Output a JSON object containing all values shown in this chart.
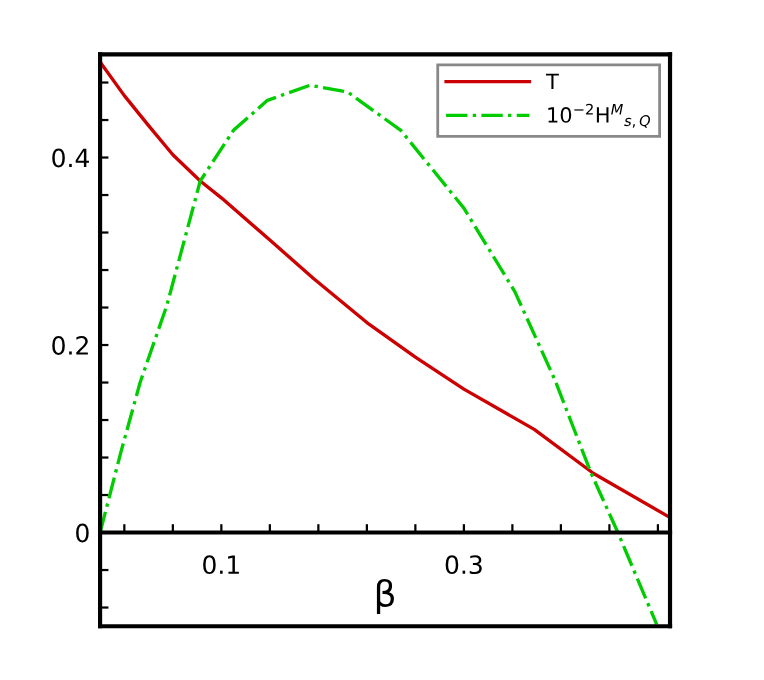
{
  "chart_data": {
    "type": "line",
    "xlabel": "β",
    "legend": "top right",
    "grid": false,
    "marker": "none",
    "xlim": [
      0,
      0.47
    ],
    "ylim": [
      -0.1,
      0.51
    ],
    "xticks": [
      {
        "value": 0.02,
        "label": null
      },
      {
        "value": 0.06,
        "label": null
      },
      0.1,
      {
        "value": 0.14,
        "label": null
      },
      {
        "value": 0.18,
        "label": null
      },
      {
        "value": 0.22,
        "label": null
      },
      {
        "value": 0.26,
        "label": null
      },
      0.3,
      {
        "value": 0.34,
        "label": null
      },
      {
        "value": 0.38,
        "label": null
      },
      {
        "value": 0.42,
        "label": null
      },
      {
        "value": 0.46,
        "label": null
      }
    ],
    "yticks": [
      {
        "value": -0.08,
        "label": null
      },
      {
        "value": -0.04,
        "label": null
      },
      0,
      {
        "value": 0.04,
        "label": null
      },
      {
        "value": 0.08,
        "label": null
      },
      {
        "value": 0.12,
        "label": null
      },
      {
        "value": 0.16,
        "label": null
      },
      0.2,
      {
        "value": 0.24,
        "label": null
      },
      {
        "value": 0.28,
        "label": null
      },
      {
        "value": 0.32,
        "label": null
      },
      {
        "value": 0.36,
        "label": null
      },
      0.4,
      {
        "value": 0.44,
        "label": null
      },
      {
        "value": 0.48,
        "label": null
      }
    ],
    "series": [
      {
        "name": "T",
        "color": "#cc0000",
        "line_style": "solid",
        "x": [
          0,
          0.02,
          0.04,
          0.06,
          0.0826,
          0.1,
          0.14,
          0.176,
          0.22,
          0.26,
          0.3,
          0.358,
          0.407,
          0.47
        ],
        "values": [
          0.502,
          0.466,
          0.434,
          0.403,
          0.375,
          0.357,
          0.312,
          0.271,
          0.224,
          0.187,
          0.153,
          0.11,
          0.063,
          0.016
        ]
      },
      {
        "name": "10$^{−2}$H$^{M}$$_{s,Q}$",
        "color": "#00cc00",
        "line_style": "dashdot",
        "x": [
          0,
          0.017,
          0.033,
          0.055,
          0.0826,
          0.11,
          0.138,
          0.173,
          0.204,
          0.248,
          0.3,
          0.342,
          0.375,
          0.405,
          0.427,
          0.459
        ],
        "values": [
          0,
          0.085,
          0.16,
          0.242,
          0.375,
          0.429,
          0.461,
          0.477,
          0.47,
          0.429,
          0.346,
          0.257,
          0.163,
          0.063,
          0,
          -0.098
        ]
      }
    ]
  }
}
